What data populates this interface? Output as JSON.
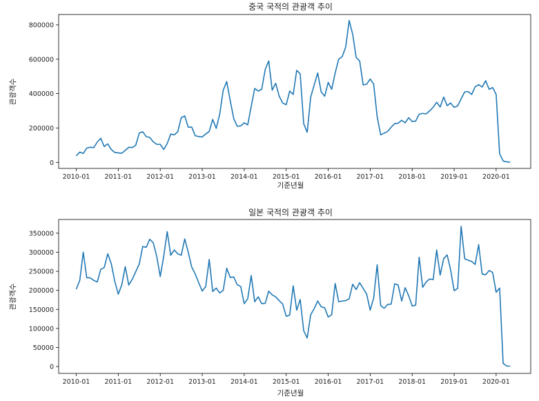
{
  "chart_data": [
    {
      "type": "line",
      "title": "중국 국적의 관광객 추이",
      "xlabel": "기준년월",
      "ylabel": "관광객수",
      "color": "#1f77b4",
      "grid": false,
      "ylim": [
        -35000,
        860000
      ],
      "xticks": [
        "2010-01",
        "2011-01",
        "2012-01",
        "2013-01",
        "2014-01",
        "2015-01",
        "2016-01",
        "2017-01",
        "2018-01",
        "2019-01",
        "2020-01"
      ],
      "yticks": [
        0,
        200000,
        400000,
        600000,
        800000
      ],
      "ytick_labels": [
        "0",
        "200000",
        "400000",
        "600000",
        "800000"
      ],
      "series": [
        {
          "values": [
            38000,
            60000,
            52000,
            83000,
            88000,
            86000,
            118000,
            140000,
            92000,
            108000,
            75000,
            58000,
            55000,
            53000,
            70000,
            88000,
            86000,
            100000,
            170000,
            178000,
            150000,
            145000,
            120000,
            105000,
            105000,
            75000,
            110000,
            165000,
            160000,
            178000,
            260000,
            270000,
            205000,
            205000,
            155000,
            150000,
            148000,
            165000,
            180000,
            250000,
            198000,
            280000,
            420000,
            470000,
            360000,
            255000,
            210000,
            212000,
            230000,
            218000,
            325000,
            430000,
            415000,
            425000,
            540000,
            590000,
            420000,
            460000,
            385000,
            345000,
            335000,
            415000,
            395000,
            535000,
            515000,
            225000,
            175000,
            380000,
            450000,
            520000,
            410000,
            385000,
            465000,
            425000,
            520000,
            600000,
            615000,
            670000,
            825000,
            745000,
            610000,
            590000,
            450000,
            455000,
            485000,
            455000,
            265000,
            160000,
            170000,
            180000,
            205000,
            225000,
            228000,
            245000,
            230000,
            260000,
            238000,
            240000,
            280000,
            285000,
            282000,
            300000,
            320000,
            350000,
            322000,
            380000,
            330000,
            345000,
            320000,
            328000,
            370000,
            410000,
            412000,
            395000,
            440000,
            452000,
            438000,
            475000,
            425000,
            435000,
            395000,
            50000,
            8000,
            3000,
            2000
          ]
        }
      ]
    },
    {
      "type": "line",
      "title": "일본 국적의 관광객 추이",
      "xlabel": "기준년월",
      "ylabel": "관광객수",
      "color": "#1f77b4",
      "grid": false,
      "ylim": [
        -18000,
        386000
      ],
      "xticks": [
        "2010-01",
        "2011-01",
        "2012-01",
        "2013-01",
        "2014-01",
        "2015-01",
        "2016-01",
        "2017-01",
        "2018-01",
        "2019-01",
        "2020-01"
      ],
      "yticks": [
        0,
        50000,
        100000,
        150000,
        200000,
        250000,
        300000,
        350000
      ],
      "ytick_labels": [
        "0",
        "50000",
        "100000",
        "150000",
        "200000",
        "250000",
        "300000",
        "350000"
      ],
      "series": [
        {
          "values": [
            203000,
            226000,
            300000,
            233000,
            233000,
            226000,
            222000,
            255000,
            260000,
            296000,
            270000,
            224000,
            190000,
            214000,
            262000,
            214000,
            229000,
            249000,
            269000,
            315000,
            313000,
            334000,
            325000,
            289000,
            236000,
            290000,
            354000,
            292000,
            306000,
            296000,
            292000,
            335000,
            300000,
            261000,
            243000,
            220000,
            198000,
            210000,
            281000,
            197000,
            206000,
            193000,
            200000,
            258000,
            234000,
            235000,
            215000,
            210000,
            165000,
            178000,
            239000,
            170000,
            183000,
            165000,
            166000,
            198000,
            188000,
            183000,
            173000,
            164000,
            132000,
            135000,
            212000,
            148000,
            176000,
            94000,
            75000,
            136000,
            152000,
            172000,
            157000,
            154000,
            130000,
            136000,
            218000,
            170000,
            172000,
            173000,
            178000,
            216000,
            202000,
            220000,
            205000,
            190000,
            148000,
            180000,
            267000,
            160000,
            153000,
            163000,
            164000,
            217000,
            214000,
            172000,
            207000,
            186000,
            159000,
            161000,
            287000,
            208000,
            222000,
            230000,
            228000,
            306000,
            240000,
            283000,
            293000,
            253000,
            199000,
            205000,
            368000,
            283000,
            279000,
            276000,
            268000,
            320000,
            243000,
            241000,
            252000,
            247000,
            195000,
            206000,
            8000,
            1500,
            1000
          ]
        }
      ]
    }
  ]
}
